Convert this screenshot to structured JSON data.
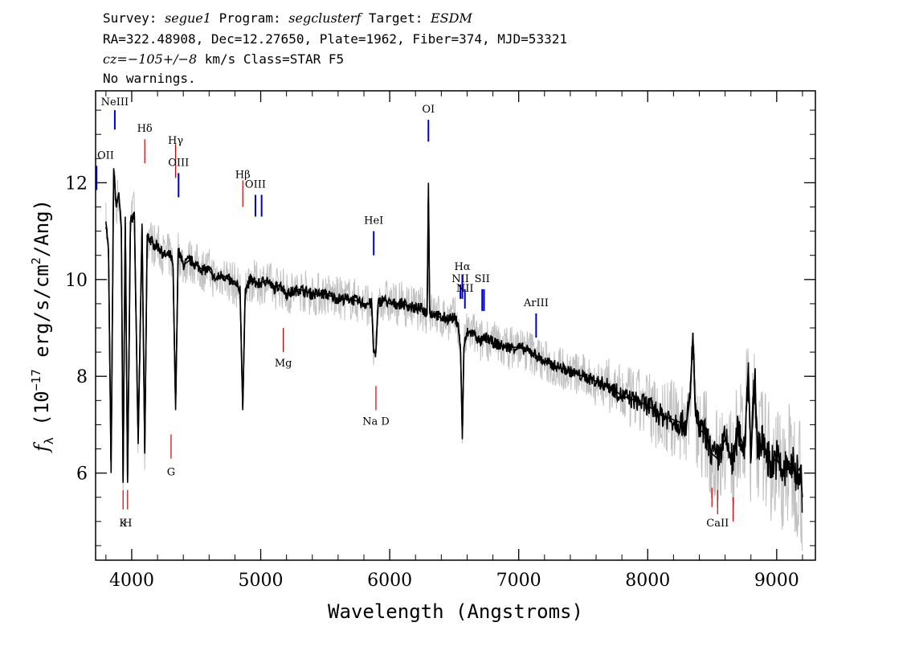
{
  "header": {
    "survey_label": "Survey:",
    "survey": "segue1",
    "program_label": "Program:",
    "program": "segclusterf",
    "target_label": "Target:",
    "target": "ESDM",
    "line2": "RA=322.48908, Dec=12.27650, Plate=1962, Fiber=374, MJD=53321",
    "cz_label": "cz=",
    "cz_value": "−105+/−8",
    "cz_rest": " km/s Class=STAR F5",
    "warnings": "No warnings."
  },
  "chart_data": {
    "type": "line",
    "title": "",
    "xlabel": "Wavelength (Angstroms)",
    "ylabel_f": "f",
    "ylabel_sub": "λ",
    "ylabel_pre": " (10",
    "ylabel_exp": "−17",
    "ylabel_mid": " erg/s/cm",
    "ylabel_exp2": "2",
    "ylabel_post": "/Ang)",
    "xlim": [
      3720,
      9300
    ],
    "ylim": [
      4.2,
      13.9
    ],
    "xticks": [
      4000,
      5000,
      6000,
      7000,
      8000,
      9000
    ],
    "xtick_labels": [
      "4000",
      "5000",
      "6000",
      "7000",
      "8000",
      "9000"
    ],
    "yticks": [
      6,
      8,
      10,
      12
    ],
    "ytick_labels": [
      "6",
      "8",
      "10",
      "12"
    ],
    "colors": {
      "flux": "#000000",
      "error_band": "#c0c0c0",
      "emission": "#0000cc",
      "absorption": "#cc0000"
    },
    "series": [
      {
        "role": "flux",
        "x": [
          3800,
          3820,
          3840,
          3860,
          3880,
          3900,
          3920,
          3933,
          3950,
          3968,
          3990,
          4020,
          4050,
          4080,
          4101,
          4120,
          4150,
          4180,
          4200,
          4250,
          4300,
          4320,
          4340,
          4360,
          4400,
          4450,
          4500,
          4550,
          4600,
          4650,
          4700,
          4750,
          4800,
          4840,
          4861,
          4880,
          4920,
          4980,
          5050,
          5100,
          5150,
          5200,
          5300,
          5400,
          5500,
          5600,
          5700,
          5800,
          5860,
          5875,
          5893,
          5910,
          5950,
          6000,
          6100,
          6200,
          6250,
          6290,
          6300,
          6310,
          6350,
          6400,
          6450,
          6500,
          6530,
          6550,
          6563,
          6575,
          6600,
          6650,
          6700,
          6750,
          6800,
          6900,
          7000,
          7100,
          7200,
          7300,
          7400,
          7500,
          7600,
          7700,
          7800,
          7900,
          8000,
          8100,
          8200,
          8300,
          8330,
          8350,
          8370,
          8400,
          8450,
          8498,
          8542,
          8600,
          8662,
          8700,
          8750,
          8780,
          8800,
          8830,
          8850,
          8900,
          8950,
          9000,
          9050,
          9100,
          9150,
          9180,
          9200
        ],
        "y": [
          11.2,
          10.6,
          6.0,
          12.3,
          11.5,
          11.8,
          11.0,
          5.8,
          11.3,
          5.8,
          11.2,
          11.4,
          6.6,
          11.1,
          6.4,
          10.9,
          10.8,
          10.7,
          10.7,
          10.5,
          10.5,
          10.3,
          7.3,
          10.6,
          10.3,
          10.4,
          10.3,
          10.2,
          10.2,
          10.0,
          10.1,
          10.0,
          9.9,
          9.8,
          7.3,
          9.8,
          10.0,
          9.9,
          10.0,
          9.8,
          9.9,
          9.7,
          9.8,
          9.7,
          9.7,
          9.6,
          9.6,
          9.5,
          9.5,
          8.5,
          8.5,
          9.5,
          9.6,
          9.5,
          9.5,
          9.4,
          9.4,
          9.3,
          12.0,
          9.3,
          9.3,
          9.2,
          9.2,
          9.2,
          9.1,
          8.5,
          6.7,
          8.6,
          8.9,
          8.9,
          8.7,
          8.8,
          8.7,
          8.6,
          8.6,
          8.5,
          8.3,
          8.2,
          8.1,
          8.0,
          7.9,
          7.8,
          7.6,
          7.5,
          7.4,
          7.2,
          7.1,
          7.0,
          7.6,
          8.9,
          7.2,
          6.9,
          6.8,
          6.4,
          6.3,
          6.7,
          6.2,
          6.9,
          6.5,
          8.2,
          6.3,
          8.0,
          6.6,
          6.6,
          6.2,
          6.3,
          6.0,
          6.2,
          6.0,
          6.1,
          5.5
        ]
      }
    ],
    "line_labels": [
      {
        "text": "NeIII",
        "kind": "emission",
        "x": 3869,
        "tick_y": [
          13.1,
          13.5
        ],
        "label_y": 13.6
      },
      {
        "text": "Hδ",
        "kind": "absorption",
        "x": 4101,
        "tick_y": [
          12.4,
          12.9
        ],
        "label_y": 13.05
      },
      {
        "text": "Hγ",
        "kind": "absorption",
        "x": 4340,
        "tick_y": [
          12.1,
          12.8
        ],
        "label_y": 12.8
      },
      {
        "text": "OIII",
        "kind": "emission",
        "x": 4363,
        "tick_y": [
          11.7,
          12.2
        ],
        "label_y": 12.35
      },
      {
        "text": "Hβ",
        "kind": "absorption",
        "x": 4861,
        "tick_y": [
          11.5,
          12.05
        ],
        "label_y": 12.1
      },
      {
        "text": "OIII",
        "kind": "emission",
        "x": 4959,
        "tick_y": [
          11.3,
          11.75
        ],
        "label_y": 11.9
      },
      {
        "text": "",
        "kind": "emission",
        "x": 5007,
        "tick_y": [
          11.3,
          11.75
        ],
        "label_y": 11.9
      },
      {
        "text": "OI",
        "kind": "emission",
        "x": 6300,
        "tick_y": [
          12.85,
          13.3
        ],
        "label_y": 13.45
      },
      {
        "text": "HeI",
        "kind": "emission",
        "x": 5876,
        "tick_y": [
          10.5,
          11.0
        ],
        "label_y": 11.15
      },
      {
        "text": "NII",
        "kind": "emission",
        "x": 6548,
        "tick_y": [
          9.6,
          9.9
        ],
        "label_y": 9.95
      },
      {
        "text": "Hα",
        "kind": "emission",
        "x": 6563,
        "tick_y": [
          9.6,
          10.1
        ],
        "label_y": 10.2
      },
      {
        "text": "NII",
        "kind": "emission",
        "x": 6583,
        "tick_y": [
          9.4,
          9.8
        ],
        "label_y": 9.75
      },
      {
        "text": "SII",
        "kind": "emission",
        "x": 6717,
        "tick_y": [
          9.35,
          9.8
        ],
        "label_y": 9.95
      },
      {
        "text": "",
        "kind": "emission",
        "x": 6731,
        "tick_y": [
          9.35,
          9.8
        ],
        "label_y": 9.95
      },
      {
        "text": "ArIII",
        "kind": "emission",
        "x": 7135,
        "tick_y": [
          8.8,
          9.3
        ],
        "label_y": 9.45
      },
      {
        "text": "OII",
        "kind": "emission",
        "x": 3727,
        "tick_y": [
          11.85,
          12.35
        ],
        "label_y": 12.5
      },
      {
        "text": "Mg",
        "kind": "absorption",
        "x": 5175,
        "tick_y": [
          8.5,
          9.0
        ],
        "label_y": 8.2
      },
      {
        "text": "Na D",
        "kind": "absorption",
        "x": 5893,
        "tick_y": [
          7.3,
          7.8
        ],
        "label_y": 7.0
      },
      {
        "text": "G",
        "kind": "absorption",
        "x": 4305,
        "tick_y": [
          6.3,
          6.8
        ],
        "label_y": 5.95
      },
      {
        "text": "K",
        "kind": "absorption",
        "x": 3933,
        "tick_y": [
          5.25,
          5.65
        ],
        "label_y": 4.9
      },
      {
        "text": "H",
        "kind": "absorption",
        "x": 3968,
        "tick_y": [
          5.25,
          5.65
        ],
        "label_y": 4.9
      },
      {
        "text": "CaII",
        "kind": "absorption",
        "x": 8542,
        "tick_y": [
          5.15,
          5.65
        ],
        "label_y": 4.9
      },
      {
        "text": "",
        "kind": "absorption",
        "x": 8498,
        "tick_y": [
          5.3,
          5.7
        ],
        "label_y": 4.9
      },
      {
        "text": "",
        "kind": "absorption",
        "x": 8662,
        "tick_y": [
          5.0,
          5.5
        ],
        "label_y": 4.9
      }
    ]
  }
}
